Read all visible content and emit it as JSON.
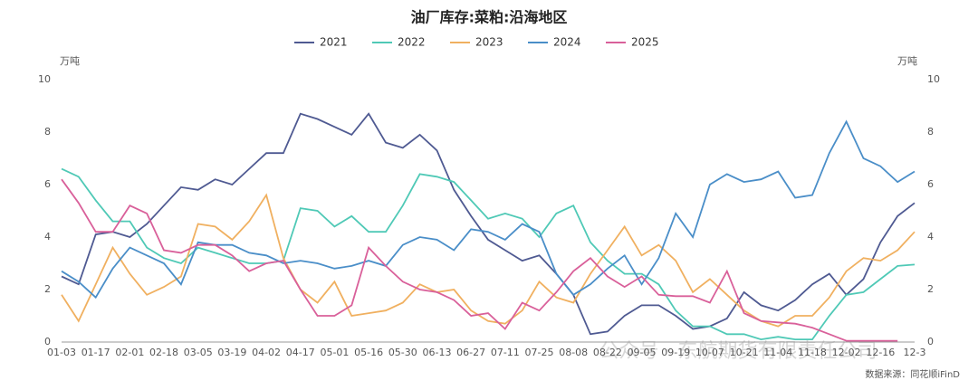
{
  "chart_data": {
    "type": "line",
    "title": "油厂库存:菜粕:沿海地区",
    "y_unit": "万吨",
    "y2_unit": "万吨",
    "source": "数据来源：同花顺iFinD",
    "watermark": "公众号 · 东航期货有限责任公司",
    "categories": [
      "01-03",
      null,
      "01-17",
      null,
      "02-01",
      null,
      "02-18",
      null,
      "03-05",
      null,
      "03-19",
      null,
      "04-02",
      null,
      "04-17",
      null,
      "05-01",
      null,
      "05-16",
      null,
      "05-30",
      null,
      "06-13",
      null,
      "06-27",
      null,
      "07-11",
      null,
      "07-25",
      null,
      "08-08",
      null,
      "08-22",
      null,
      "09-05",
      null,
      "09-19",
      null,
      "10-07",
      null,
      "10-21",
      null,
      "11-04",
      null,
      "11-18",
      null,
      "12-02",
      null,
      "12-16",
      null,
      "12-3"
    ],
    "ylim": [
      0,
      10
    ],
    "yticks": [
      0,
      2,
      4,
      6,
      8,
      10
    ],
    "y2lim": [
      0,
      10
    ],
    "y2ticks": [
      0,
      2,
      4,
      6,
      8,
      10
    ],
    "series": [
      {
        "name": "2021",
        "color": "#4f5a92",
        "values": [
          2.5,
          2.2,
          4.1,
          4.2,
          4.0,
          4.5,
          5.2,
          5.9,
          5.8,
          6.2,
          6.0,
          6.6,
          7.2,
          7.2,
          8.7,
          8.5,
          8.2,
          7.9,
          8.7,
          7.6,
          7.4,
          7.9,
          7.3,
          5.8,
          4.8,
          3.9,
          3.5,
          3.1,
          3.3,
          2.6,
          1.8,
          0.3,
          0.4,
          1.0,
          1.4,
          1.4,
          1.0,
          0.5,
          0.6,
          0.9,
          1.9,
          1.4,
          1.2,
          1.6,
          2.2,
          2.6,
          1.8,
          2.4,
          3.8,
          4.8,
          5.3
        ]
      },
      {
        "name": "2022",
        "color": "#4fc9b6",
        "values": [
          6.6,
          6.3,
          5.4,
          4.6,
          4.6,
          3.6,
          3.2,
          3.0,
          3.6,
          3.4,
          3.2,
          3.0,
          3.0,
          3.1,
          5.1,
          5.0,
          4.4,
          4.8,
          4.2,
          4.2,
          5.2,
          6.4,
          6.3,
          6.1,
          5.4,
          4.7,
          4.9,
          4.7,
          4.0,
          4.9,
          5.2,
          3.8,
          3.1,
          2.6,
          2.6,
          2.2,
          1.2,
          0.6,
          0.6,
          0.3,
          0.3,
          0.1,
          0.2,
          0.1,
          0.1,
          1.0,
          1.8,
          1.9,
          2.4,
          2.9,
          2.95
        ]
      },
      {
        "name": "2023",
        "color": "#f0b060",
        "values": [
          1.8,
          0.8,
          2.2,
          3.6,
          2.6,
          1.8,
          2.1,
          2.5,
          4.5,
          4.4,
          3.9,
          4.6,
          5.6,
          3.2,
          2.0,
          1.5,
          2.3,
          1.0,
          1.1,
          1.2,
          1.5,
          2.2,
          1.9,
          2.0,
          1.2,
          0.8,
          0.7,
          1.2,
          2.3,
          1.7,
          1.5,
          2.6,
          3.5,
          4.4,
          3.3,
          3.7,
          3.1,
          1.9,
          2.4,
          1.8,
          1.2,
          0.8,
          0.6,
          1.0,
          1.0,
          1.7,
          2.7,
          3.2,
          3.1,
          3.5,
          4.2
        ]
      },
      {
        "name": "2024",
        "color": "#4a8ec8",
        "values": [
          2.7,
          2.3,
          1.7,
          2.8,
          3.6,
          3.3,
          3.0,
          2.2,
          3.8,
          3.7,
          3.7,
          3.4,
          3.3,
          3.0,
          3.1,
          3.0,
          2.8,
          2.9,
          3.1,
          2.9,
          3.7,
          4.0,
          3.9,
          3.5,
          4.3,
          4.2,
          3.9,
          4.5,
          4.2,
          2.6,
          1.8,
          2.2,
          2.8,
          3.3,
          2.2,
          3.2,
          4.9,
          4.0,
          6.0,
          6.4,
          6.1,
          6.2,
          6.5,
          5.5,
          5.6,
          7.2,
          8.4,
          7.0,
          6.7,
          6.1,
          6.5
        ]
      },
      {
        "name": "2025",
        "color": "#d9609a",
        "values": [
          6.2,
          5.3,
          4.2,
          4.2,
          5.2,
          4.9,
          3.5,
          3.4,
          3.7,
          3.7,
          3.3,
          2.7,
          3.0,
          3.1,
          2.0,
          1.0,
          1.0,
          1.4,
          3.6,
          2.9,
          2.3,
          2.0,
          1.9,
          1.6,
          1.0,
          1.1,
          0.5,
          1.5,
          1.2,
          1.9,
          2.7,
          3.2,
          2.5,
          2.1,
          2.5,
          1.8,
          1.75,
          1.75,
          1.5,
          2.7,
          1.1,
          0.8,
          0.75,
          0.7,
          0.55,
          0.3,
          0.05,
          0.05,
          0.05,
          0.05,
          null
        ]
      }
    ]
  }
}
